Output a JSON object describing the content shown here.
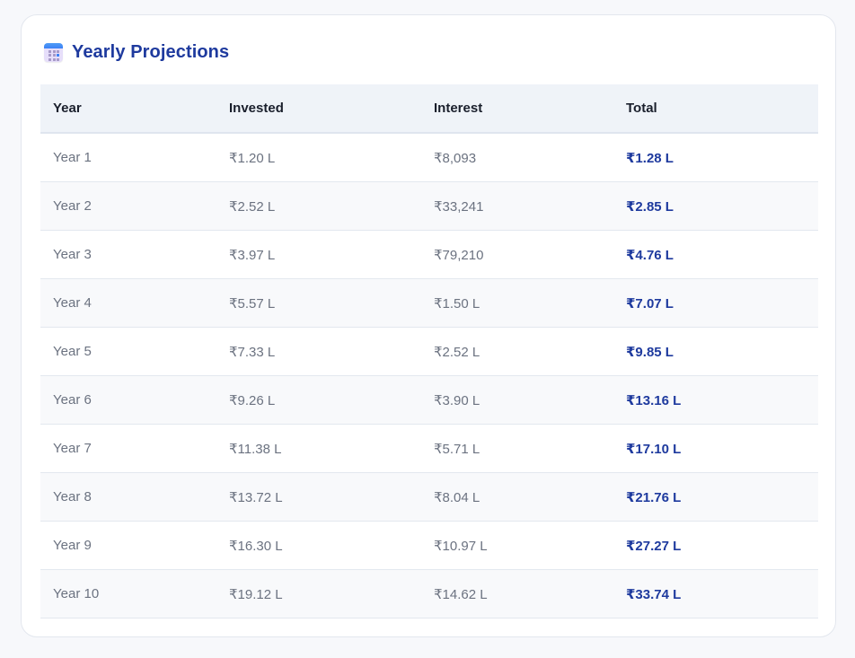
{
  "card": {
    "title": "Yearly Projections",
    "icon": "calendar-icon"
  },
  "table": {
    "columns": [
      "Year",
      "Invested",
      "Interest",
      "Total"
    ],
    "rows": [
      {
        "year": "Year 1",
        "invested": "₹1.20 L",
        "interest": "₹8,093",
        "total": "₹1.28 L"
      },
      {
        "year": "Year 2",
        "invested": "₹2.52 L",
        "interest": "₹33,241",
        "total": "₹2.85 L"
      },
      {
        "year": "Year 3",
        "invested": "₹3.97 L",
        "interest": "₹79,210",
        "total": "₹4.76 L"
      },
      {
        "year": "Year 4",
        "invested": "₹5.57 L",
        "interest": "₹1.50 L",
        "total": "₹7.07 L"
      },
      {
        "year": "Year 5",
        "invested": "₹7.33 L",
        "interest": "₹2.52 L",
        "total": "₹9.85 L"
      },
      {
        "year": "Year 6",
        "invested": "₹9.26 L",
        "interest": "₹3.90 L",
        "total": "₹13.16 L"
      },
      {
        "year": "Year 7",
        "invested": "₹11.38 L",
        "interest": "₹5.71 L",
        "total": "₹17.10 L"
      },
      {
        "year": "Year 8",
        "invested": "₹13.72 L",
        "interest": "₹8.04 L",
        "total": "₹21.76 L"
      },
      {
        "year": "Year 9",
        "invested": "₹16.30 L",
        "interest": "₹10.97 L",
        "total": "₹27.27 L"
      },
      {
        "year": "Year 10",
        "invested": "₹19.12 L",
        "interest": "₹14.62 L",
        "total": "₹33.74 L"
      }
    ]
  },
  "colors": {
    "accent": "#1e3a9e",
    "header_bg": "#eff3f8",
    "alt_row_bg": "#f8f9fb",
    "muted_text": "#6b7280"
  }
}
